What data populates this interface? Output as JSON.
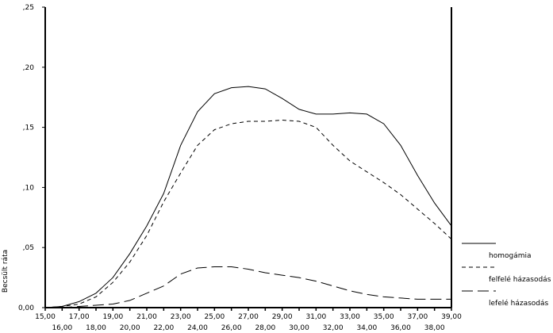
{
  "chart_data": {
    "type": "line",
    "title": "",
    "xlabel": "",
    "ylabel": "Becsült ráta",
    "xlim": [
      15,
      39
    ],
    "ylim": [
      0,
      0.25
    ],
    "grid": false,
    "legend_placement": "right",
    "x_ticks_upper": [
      "15,00",
      "17,00",
      "19,00",
      "21,00",
      "23,00",
      "25,00",
      "27,00",
      "29,00",
      "31,00",
      "33,00",
      "35,00",
      "37,00",
      "39,00"
    ],
    "x_ticks_lower": [
      "16,00",
      "18,00",
      "20,00",
      "22,00",
      "24,00",
      "26,00",
      "28,00",
      "30,00",
      "32,00",
      "34,00",
      "36,00",
      "38,00"
    ],
    "y_ticks": [
      {
        "value": 0,
        "label": "0,00"
      },
      {
        "value": 0.05,
        "label": ",05"
      },
      {
        "value": 0.1,
        "label": ",10"
      },
      {
        "value": 0.15,
        "label": ",15"
      },
      {
        "value": 0.2,
        "label": ",20"
      },
      {
        "value": 0.25,
        "label": ",25"
      }
    ],
    "x": [
      15,
      16,
      17,
      18,
      19,
      20,
      21,
      22,
      23,
      24,
      25,
      26,
      27,
      28,
      29,
      30,
      31,
      32,
      33,
      34,
      35,
      36,
      37,
      38,
      39
    ],
    "series": [
      {
        "name": "homogámia",
        "style": "solid",
        "values": [
          0,
          0.001,
          0.005,
          0.012,
          0.025,
          0.045,
          0.068,
          0.095,
          0.135,
          0.163,
          0.178,
          0.183,
          0.184,
          0.182,
          0.174,
          0.165,
          0.161,
          0.161,
          0.162,
          0.161,
          0.153,
          0.135,
          0.11,
          0.087,
          0.068
        ]
      },
      {
        "name": "felfelé házasodás",
        "style": "short-dash",
        "values": [
          0,
          0.001,
          0.003,
          0.009,
          0.021,
          0.038,
          0.06,
          0.088,
          0.112,
          0.135,
          0.148,
          0.153,
          0.155,
          0.155,
          0.156,
          0.155,
          0.15,
          0.135,
          0.122,
          0.113,
          0.104,
          0.094,
          0.082,
          0.07,
          0.057
        ]
      },
      {
        "name": "lefelé házasodás",
        "style": "long-dash",
        "values": [
          0,
          0,
          0.001,
          0.002,
          0.003,
          0.006,
          0.012,
          0.018,
          0.028,
          0.033,
          0.034,
          0.034,
          0.032,
          0.029,
          0.027,
          0.025,
          0.022,
          0.018,
          0.014,
          0.011,
          0.009,
          0.008,
          0.007,
          0.007,
          0.007
        ]
      }
    ]
  }
}
